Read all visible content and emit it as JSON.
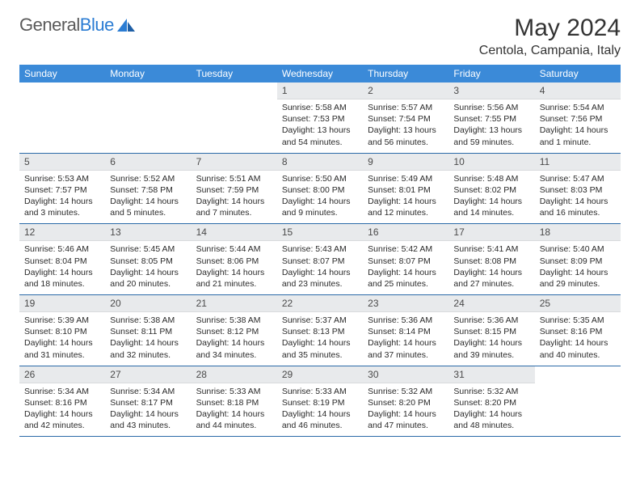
{
  "logo": {
    "word1": "General",
    "word2": "Blue"
  },
  "title": "May 2024",
  "location": "Centola, Campania, Italy",
  "colors": {
    "header_bg": "#3b8ad8",
    "header_text": "#ffffff",
    "daynum_bg": "#e8eaec",
    "row_border": "#2b6aa8",
    "logo_gray": "#5a5a5a",
    "logo_blue": "#2b7cd3"
  },
  "dayNames": [
    "Sunday",
    "Monday",
    "Tuesday",
    "Wednesday",
    "Thursday",
    "Friday",
    "Saturday"
  ],
  "weeks": [
    [
      {
        "n": "",
        "sr": "",
        "ss": "",
        "dl": ""
      },
      {
        "n": "",
        "sr": "",
        "ss": "",
        "dl": ""
      },
      {
        "n": "",
        "sr": "",
        "ss": "",
        "dl": ""
      },
      {
        "n": "1",
        "sr": "Sunrise: 5:58 AM",
        "ss": "Sunset: 7:53 PM",
        "dl": "Daylight: 13 hours and 54 minutes."
      },
      {
        "n": "2",
        "sr": "Sunrise: 5:57 AM",
        "ss": "Sunset: 7:54 PM",
        "dl": "Daylight: 13 hours and 56 minutes."
      },
      {
        "n": "3",
        "sr": "Sunrise: 5:56 AM",
        "ss": "Sunset: 7:55 PM",
        "dl": "Daylight: 13 hours and 59 minutes."
      },
      {
        "n": "4",
        "sr": "Sunrise: 5:54 AM",
        "ss": "Sunset: 7:56 PM",
        "dl": "Daylight: 14 hours and 1 minute."
      }
    ],
    [
      {
        "n": "5",
        "sr": "Sunrise: 5:53 AM",
        "ss": "Sunset: 7:57 PM",
        "dl": "Daylight: 14 hours and 3 minutes."
      },
      {
        "n": "6",
        "sr": "Sunrise: 5:52 AM",
        "ss": "Sunset: 7:58 PM",
        "dl": "Daylight: 14 hours and 5 minutes."
      },
      {
        "n": "7",
        "sr": "Sunrise: 5:51 AM",
        "ss": "Sunset: 7:59 PM",
        "dl": "Daylight: 14 hours and 7 minutes."
      },
      {
        "n": "8",
        "sr": "Sunrise: 5:50 AM",
        "ss": "Sunset: 8:00 PM",
        "dl": "Daylight: 14 hours and 9 minutes."
      },
      {
        "n": "9",
        "sr": "Sunrise: 5:49 AM",
        "ss": "Sunset: 8:01 PM",
        "dl": "Daylight: 14 hours and 12 minutes."
      },
      {
        "n": "10",
        "sr": "Sunrise: 5:48 AM",
        "ss": "Sunset: 8:02 PM",
        "dl": "Daylight: 14 hours and 14 minutes."
      },
      {
        "n": "11",
        "sr": "Sunrise: 5:47 AM",
        "ss": "Sunset: 8:03 PM",
        "dl": "Daylight: 14 hours and 16 minutes."
      }
    ],
    [
      {
        "n": "12",
        "sr": "Sunrise: 5:46 AM",
        "ss": "Sunset: 8:04 PM",
        "dl": "Daylight: 14 hours and 18 minutes."
      },
      {
        "n": "13",
        "sr": "Sunrise: 5:45 AM",
        "ss": "Sunset: 8:05 PM",
        "dl": "Daylight: 14 hours and 20 minutes."
      },
      {
        "n": "14",
        "sr": "Sunrise: 5:44 AM",
        "ss": "Sunset: 8:06 PM",
        "dl": "Daylight: 14 hours and 21 minutes."
      },
      {
        "n": "15",
        "sr": "Sunrise: 5:43 AM",
        "ss": "Sunset: 8:07 PM",
        "dl": "Daylight: 14 hours and 23 minutes."
      },
      {
        "n": "16",
        "sr": "Sunrise: 5:42 AM",
        "ss": "Sunset: 8:07 PM",
        "dl": "Daylight: 14 hours and 25 minutes."
      },
      {
        "n": "17",
        "sr": "Sunrise: 5:41 AM",
        "ss": "Sunset: 8:08 PM",
        "dl": "Daylight: 14 hours and 27 minutes."
      },
      {
        "n": "18",
        "sr": "Sunrise: 5:40 AM",
        "ss": "Sunset: 8:09 PM",
        "dl": "Daylight: 14 hours and 29 minutes."
      }
    ],
    [
      {
        "n": "19",
        "sr": "Sunrise: 5:39 AM",
        "ss": "Sunset: 8:10 PM",
        "dl": "Daylight: 14 hours and 31 minutes."
      },
      {
        "n": "20",
        "sr": "Sunrise: 5:38 AM",
        "ss": "Sunset: 8:11 PM",
        "dl": "Daylight: 14 hours and 32 minutes."
      },
      {
        "n": "21",
        "sr": "Sunrise: 5:38 AM",
        "ss": "Sunset: 8:12 PM",
        "dl": "Daylight: 14 hours and 34 minutes."
      },
      {
        "n": "22",
        "sr": "Sunrise: 5:37 AM",
        "ss": "Sunset: 8:13 PM",
        "dl": "Daylight: 14 hours and 35 minutes."
      },
      {
        "n": "23",
        "sr": "Sunrise: 5:36 AM",
        "ss": "Sunset: 8:14 PM",
        "dl": "Daylight: 14 hours and 37 minutes."
      },
      {
        "n": "24",
        "sr": "Sunrise: 5:36 AM",
        "ss": "Sunset: 8:15 PM",
        "dl": "Daylight: 14 hours and 39 minutes."
      },
      {
        "n": "25",
        "sr": "Sunrise: 5:35 AM",
        "ss": "Sunset: 8:16 PM",
        "dl": "Daylight: 14 hours and 40 minutes."
      }
    ],
    [
      {
        "n": "26",
        "sr": "Sunrise: 5:34 AM",
        "ss": "Sunset: 8:16 PM",
        "dl": "Daylight: 14 hours and 42 minutes."
      },
      {
        "n": "27",
        "sr": "Sunrise: 5:34 AM",
        "ss": "Sunset: 8:17 PM",
        "dl": "Daylight: 14 hours and 43 minutes."
      },
      {
        "n": "28",
        "sr": "Sunrise: 5:33 AM",
        "ss": "Sunset: 8:18 PM",
        "dl": "Daylight: 14 hours and 44 minutes."
      },
      {
        "n": "29",
        "sr": "Sunrise: 5:33 AM",
        "ss": "Sunset: 8:19 PM",
        "dl": "Daylight: 14 hours and 46 minutes."
      },
      {
        "n": "30",
        "sr": "Sunrise: 5:32 AM",
        "ss": "Sunset: 8:20 PM",
        "dl": "Daylight: 14 hours and 47 minutes."
      },
      {
        "n": "31",
        "sr": "Sunrise: 5:32 AM",
        "ss": "Sunset: 8:20 PM",
        "dl": "Daylight: 14 hours and 48 minutes."
      },
      {
        "n": "",
        "sr": "",
        "ss": "",
        "dl": ""
      }
    ]
  ]
}
